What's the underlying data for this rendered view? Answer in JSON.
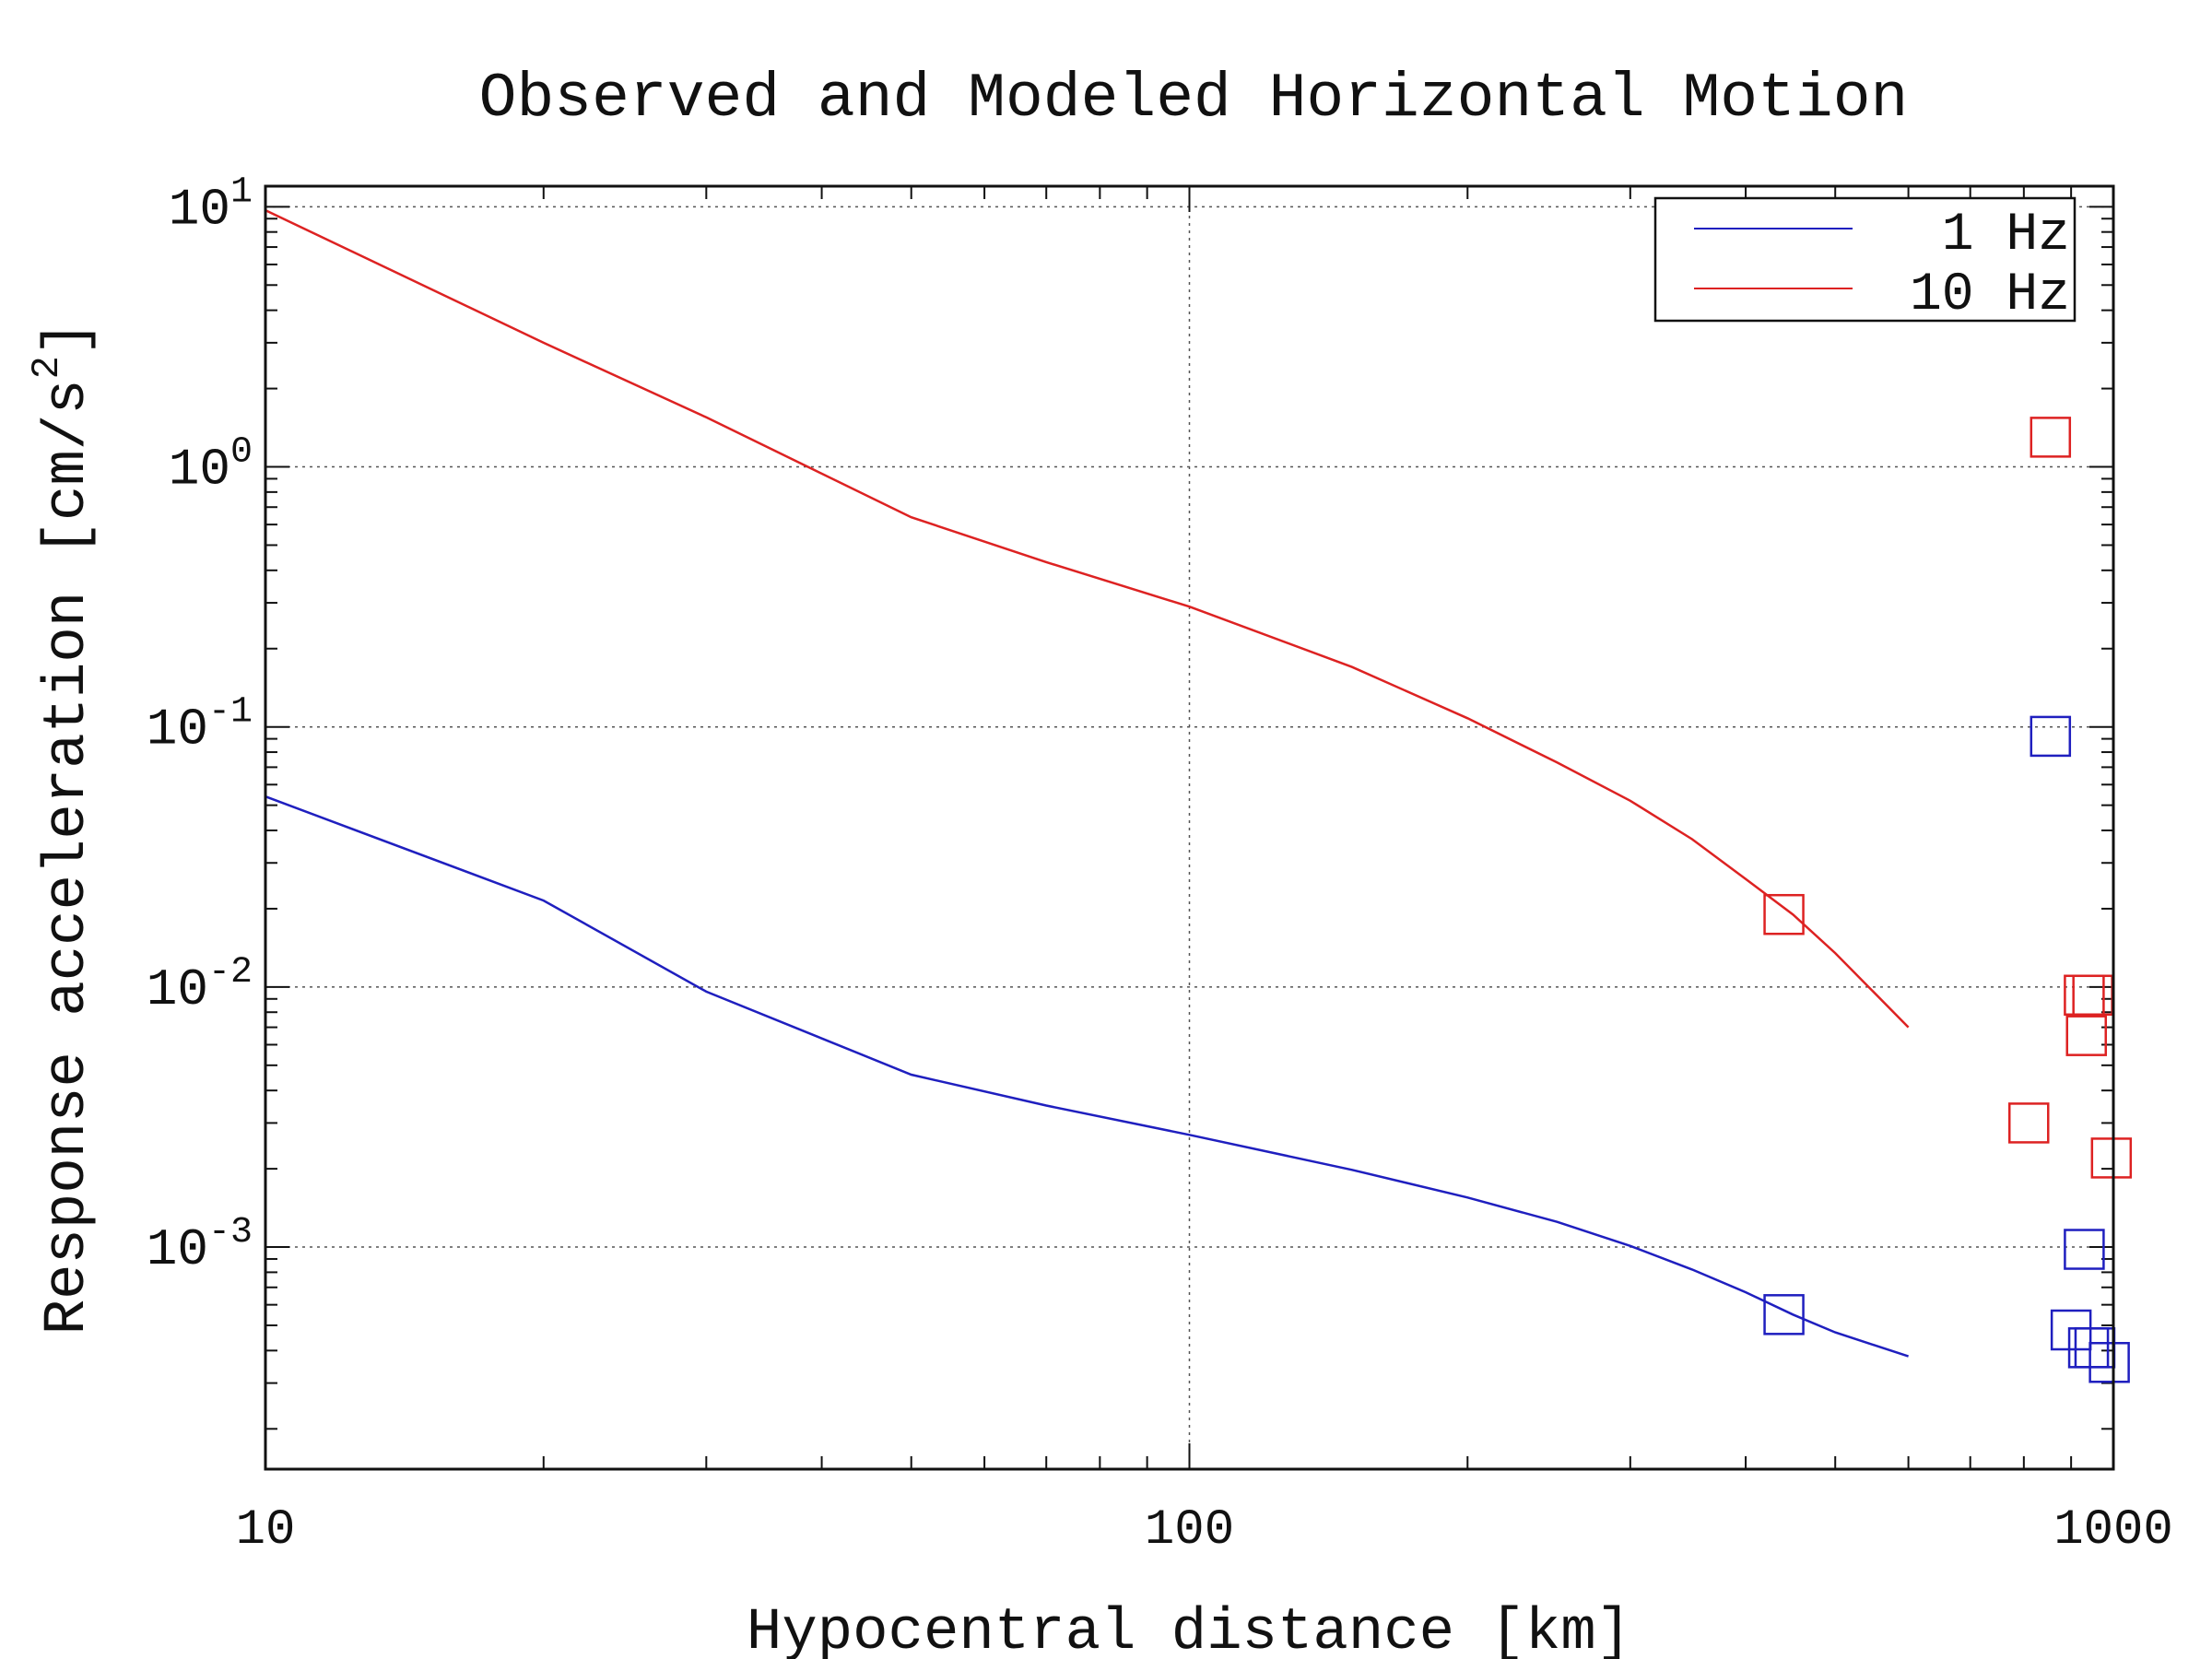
{
  "chart_data": {
    "type": "line",
    "title": "Observed and Modeled Horizontal Motion",
    "xlabel": "Hypocentral distance [km]",
    "ylabel_main": "Response acceleration [cm/s",
    "ylabel_sup": "2",
    "ylabel_close": "]",
    "xscale": "log",
    "yscale": "log",
    "xlim": [
      10,
      1000
    ],
    "ylim": [
      0.00014,
      12
    ],
    "grid": true,
    "legend_position": "top-right",
    "x_ticks": [
      {
        "value": 10,
        "label": "10"
      },
      {
        "value": 100,
        "label": "100"
      },
      {
        "value": 1000,
        "label": "1000"
      }
    ],
    "y_ticks": [
      {
        "value": 10,
        "base": "10",
        "exp": "1"
      },
      {
        "value": 1,
        "base": "10",
        "exp": "0"
      },
      {
        "value": 0.1,
        "base": "10",
        "exp": "-1"
      },
      {
        "value": 0.01,
        "base": "10",
        "exp": "-2"
      },
      {
        "value": 0.001,
        "base": "10",
        "exp": "-3"
      }
    ],
    "series": [
      {
        "name": "1 Hz",
        "color": "#1f1fbf",
        "line": {
          "x": [
            10,
            20,
            30,
            50,
            70,
            100,
            150,
            200,
            250,
            300,
            350,
            400,
            450,
            500,
            600
          ],
          "y": [
            0.054,
            0.0215,
            0.0096,
            0.0046,
            0.0035,
            0.0027,
            0.00198,
            0.00155,
            0.00125,
            0.00101,
            0.00082,
            0.00067,
            0.00055,
            0.00047,
            0.00038
          ]
        },
        "observed": {
          "x": [
            440,
            855,
            900,
            930,
            940,
            955,
            990
          ],
          "y": [
            0.00055,
            0.092,
            0.00048,
            0.00098,
            0.00041,
            0.00041,
            0.00036
          ]
        }
      },
      {
        "name": "10 Hz",
        "color": "#dd2222",
        "line": {
          "x": [
            10,
            20,
            30,
            50,
            70,
            100,
            150,
            200,
            250,
            300,
            350,
            400,
            450,
            500,
            600
          ],
          "y": [
            9.7,
            3.0,
            1.55,
            0.64,
            0.43,
            0.29,
            0.17,
            0.108,
            0.073,
            0.052,
            0.037,
            0.026,
            0.019,
            0.0135,
            0.007
          ]
        },
        "observed": {
          "x": [
            440,
            855,
            810,
            930,
            935,
            950,
            995
          ],
          "y": [
            0.019,
            1.3,
            0.003,
            0.0093,
            0.0065,
            0.0093,
            0.0022
          ]
        }
      }
    ]
  }
}
